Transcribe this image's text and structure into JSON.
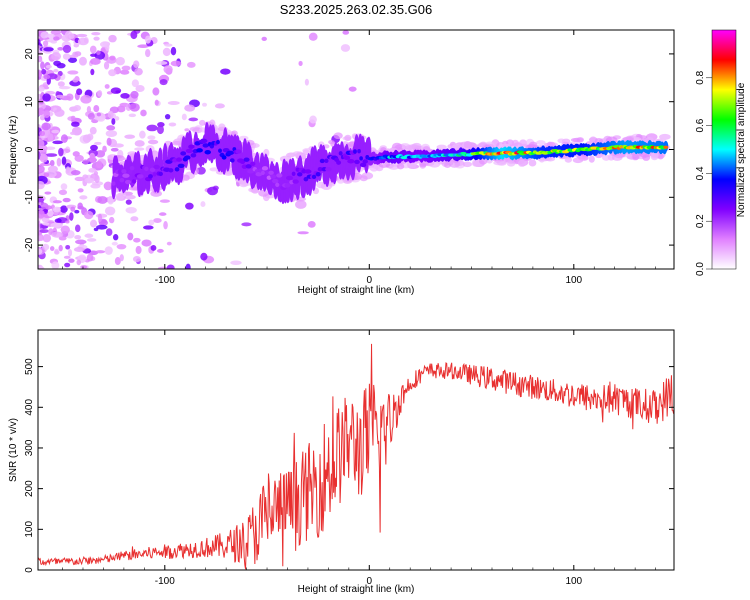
{
  "title": "S233.2025.263.02.35.G06",
  "chart_data": [
    {
      "type": "heatmap",
      "xlabel": "Height of straight line (km)",
      "ylabel": "Frequency (Hz)",
      "xlim": [
        -162,
        149
      ],
      "ylim": [
        -25,
        25
      ],
      "x_ticks": [
        -100,
        0,
        100
      ],
      "y_ticks": [
        -20,
        -10,
        0,
        10,
        20
      ],
      "colorbar": {
        "label": "Normalized spectral amplitude",
        "range": [
          0,
          1
        ],
        "ticks": [
          0.0,
          0.2,
          0.4,
          0.6,
          0.8
        ],
        "tick_labels": [
          "0.0",
          "0.2",
          "0.4",
          "0.6",
          "0.8"
        ],
        "colors": [
          "#ffffff",
          "#e080ff",
          "#8000ff",
          "#0000ff",
          "#00ffff",
          "#00ff00",
          "#ffff00",
          "#ff0000",
          "#ff00ff"
        ]
      },
      "ridge": {
        "x": [
          -125,
          -110,
          -95,
          -82,
          -72,
          -62,
          -52,
          -45,
          -38,
          -30,
          -22,
          -15,
          -8,
          0,
          10,
          25,
          45,
          65,
          85,
          105,
          125,
          145
        ],
        "y": [
          -6,
          -5,
          -3,
          1,
          0,
          -2,
          -5,
          -7,
          -6,
          -5,
          -3,
          -2,
          -1.5,
          -2,
          -1.5,
          -1.5,
          -1,
          -0.8,
          -0.6,
          0,
          0.5,
          0.5
        ],
        "amplitude": [
          0.2,
          0.25,
          0.3,
          0.35,
          0.35,
          0.3,
          0.2,
          0.2,
          0.25,
          0.3,
          0.3,
          0.3,
          0.32,
          0.35,
          0.5,
          0.45,
          0.55,
          0.88,
          0.72,
          0.7,
          0.82,
          0.78
        ]
      }
    },
    {
      "type": "line",
      "xlabel": "Height of straight line (km)",
      "ylabel": "SNR (10 * v/v)",
      "xlim": [
        -162,
        149
      ],
      "ylim": [
        0,
        590
      ],
      "x_ticks": [
        -100,
        0,
        100
      ],
      "y_ticks": [
        0,
        100,
        200,
        300,
        400,
        500
      ],
      "line_color": "#e83030",
      "series": [
        {
          "name": "SNR",
          "x": [
            -162,
            -150,
            -140,
            -130,
            -120,
            -110,
            -100,
            -90,
            -80,
            -70,
            -60,
            -55,
            -50,
            -45,
            -40,
            -35,
            -30,
            -25,
            -20,
            -15,
            -10,
            -5,
            0,
            5,
            10,
            15,
            20,
            25,
            30,
            40,
            50,
            60,
            70,
            80,
            90,
            100,
            110,
            120,
            130,
            140,
            149
          ],
          "values": [
            20,
            20,
            22,
            25,
            35,
            40,
            45,
            50,
            55,
            60,
            70,
            100,
            130,
            150,
            160,
            170,
            190,
            210,
            250,
            280,
            320,
            300,
            330,
            330,
            360,
            420,
            460,
            480,
            490,
            490,
            480,
            470,
            460,
            450,
            440,
            430,
            420,
            420,
            410,
            400,
            440
          ],
          "noise_amplitude": [
            10,
            10,
            10,
            10,
            12,
            15,
            18,
            20,
            25,
            35,
            60,
            90,
            110,
            100,
            90,
            110,
            120,
            130,
            150,
            130,
            120,
            130,
            140,
            160,
            80,
            40,
            25,
            20,
            20,
            20,
            25,
            30,
            30,
            30,
            30,
            35,
            35,
            40,
            40,
            45,
            60
          ]
        }
      ]
    }
  ]
}
